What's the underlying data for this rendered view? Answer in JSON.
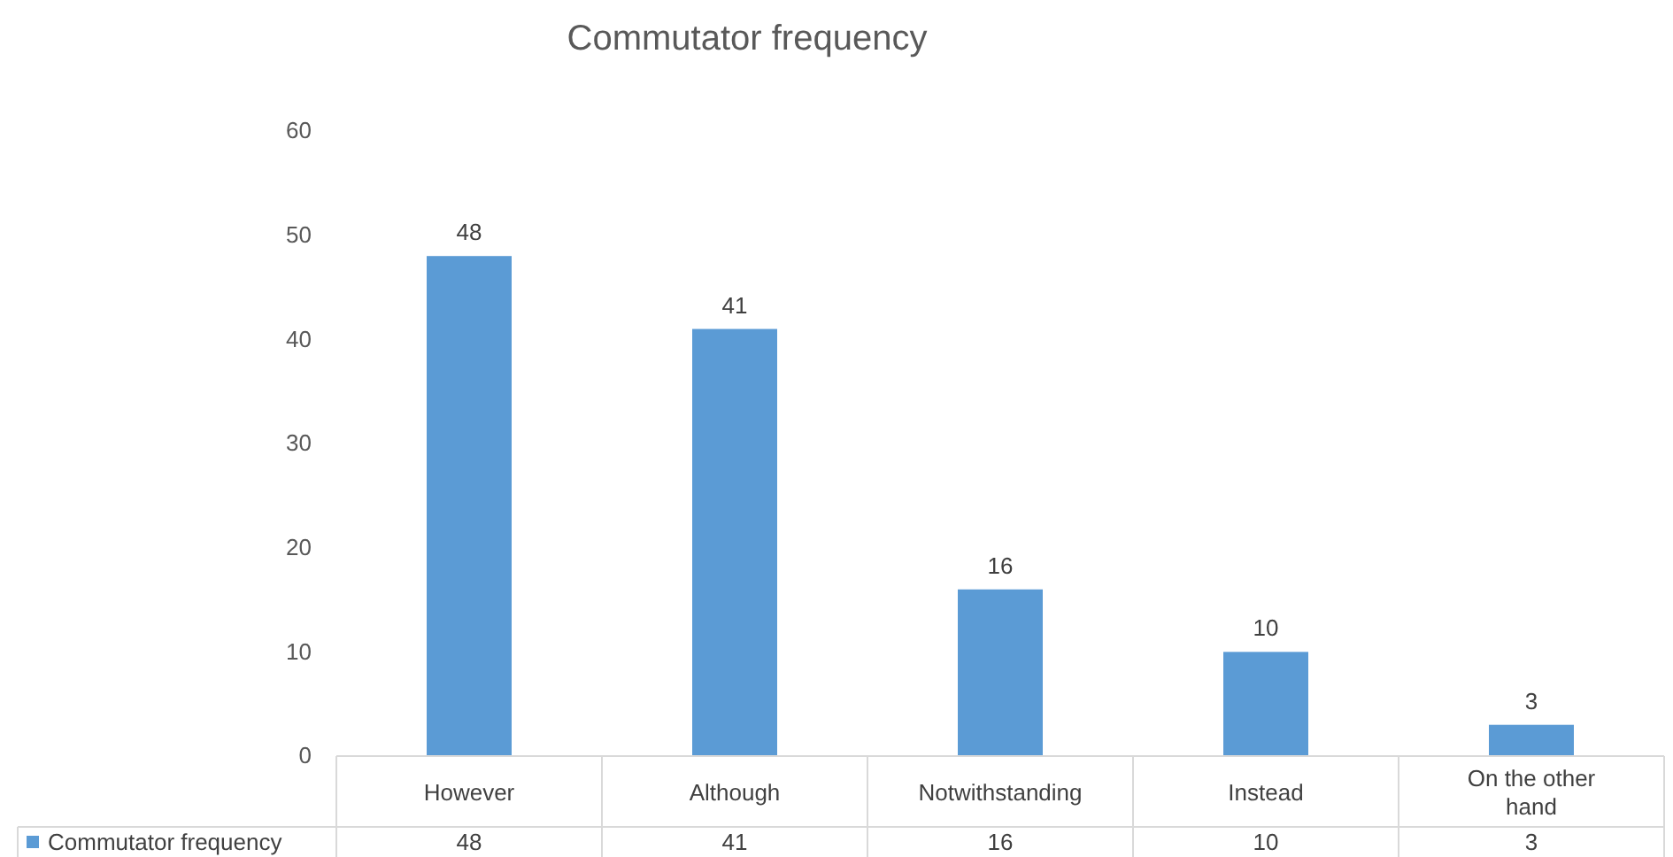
{
  "chart_data": {
    "type": "bar",
    "title": "Commutator frequency",
    "categories": [
      "However",
      "Although",
      "Notwithstanding",
      "Instead",
      "On the other hand"
    ],
    "series": [
      {
        "name": "Commutator frequency",
        "color": "#5b9bd5",
        "values": [
          48,
          41,
          16,
          10,
          3
        ]
      }
    ],
    "annotations": [
      "48",
      "41",
      "16",
      "10",
      "3"
    ],
    "ylim": [
      0,
      60
    ],
    "yticks": [
      0,
      10,
      20,
      30,
      40,
      50,
      60
    ],
    "grid": false,
    "legend": "bottom",
    "data_labels": true
  }
}
